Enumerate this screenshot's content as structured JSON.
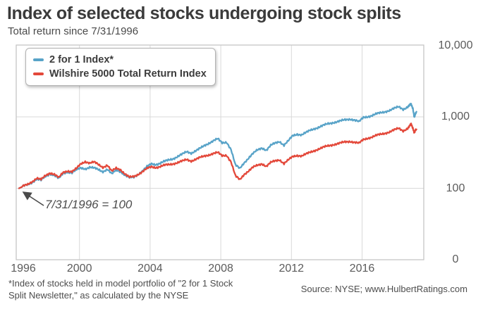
{
  "header": {
    "title": "Index of selected stocks undergoing stock splits",
    "subtitle": "Total return since 7/31/1996"
  },
  "legend": [
    {
      "label": "2 for 1 Index*",
      "color": "#58a3c8"
    },
    {
      "label": "Wilshire 5000 Total Return Index",
      "color": "#e3483a"
    }
  ],
  "annotation": {
    "text": "7/31/1996 = 100"
  },
  "footnote": {
    "line1": "*Index of stocks held in model portfolio of \"2 for 1 Stock",
    "line2": "Split Newsletter,\" as calculated by the NYSE"
  },
  "source": "Source: NYSE; www.HulbertRatings.com",
  "chart_data": {
    "type": "line",
    "title": "Index of selected stocks undergoing stock splits",
    "subtitle": "Total return since 7/31/1996",
    "y_scale": "log",
    "grid": true,
    "legend_position": "top-left",
    "base_note": "7/31/1996 = 100",
    "x_ticks": [
      1996,
      2000,
      2004,
      2008,
      2012,
      2016
    ],
    "y_ticks": [
      {
        "label": "10,000",
        "value": 10000
      },
      {
        "label": "1,000",
        "value": 1000
      },
      {
        "label": "100",
        "value": 100
      },
      {
        "label": "0",
        "value": 0
      }
    ],
    "x": [
      1996.58,
      1996.83,
      1997.08,
      1997.33,
      1997.58,
      1997.83,
      1998.08,
      1998.33,
      1998.58,
      1998.83,
      1999.08,
      1999.33,
      1999.58,
      1999.83,
      2000.08,
      2000.33,
      2000.58,
      2000.83,
      2001.08,
      2001.33,
      2001.58,
      2001.83,
      2002.08,
      2002.33,
      2002.58,
      2002.83,
      2003.08,
      2003.33,
      2003.58,
      2003.83,
      2004.08,
      2004.33,
      2004.58,
      2004.83,
      2005.08,
      2005.33,
      2005.58,
      2005.83,
      2006.08,
      2006.33,
      2006.58,
      2006.83,
      2007.08,
      2007.33,
      2007.58,
      2007.83,
      2008.08,
      2008.33,
      2008.58,
      2008.83,
      2009.08,
      2009.33,
      2009.58,
      2009.83,
      2010.08,
      2010.33,
      2010.58,
      2010.83,
      2011.08,
      2011.33,
      2011.58,
      2011.83,
      2012.08,
      2012.33,
      2012.58,
      2012.83,
      2013.08,
      2013.33,
      2013.58,
      2013.83,
      2014.08,
      2014.33,
      2014.58,
      2014.83,
      2015.08,
      2015.33,
      2015.58,
      2015.83,
      2016.08,
      2016.33,
      2016.58,
      2016.83,
      2017.08,
      2017.33,
      2017.58,
      2017.83,
      2018.08,
      2018.33,
      2018.58,
      2018.7,
      2018.78,
      2018.88,
      2018.96,
      2019.02,
      2019.08
    ],
    "series": [
      {
        "name": "2 for 1 Index*",
        "color": "#58a3c8",
        "values": [
          100,
          107,
          113,
          122,
          134,
          129,
          147,
          160,
          152,
          136,
          162,
          170,
          165,
          180,
          193,
          188,
          197,
          191,
          183,
          172,
          184,
          158,
          180,
          173,
          152,
          140,
          143,
          158,
          176,
          200,
          220,
          216,
          225,
          238,
          250,
          262,
          280,
          300,
          325,
          312,
          335,
          360,
          395,
          430,
          465,
          490,
          430,
          445,
          350,
          210,
          190,
          230,
          265,
          305,
          345,
          370,
          340,
          395,
          430,
          455,
          400,
          460,
          545,
          575,
          560,
          600,
          650,
          690,
          720,
          760,
          800,
          830,
          855,
          880,
          910,
          935,
          905,
          850,
          980,
          1010,
          1050,
          1100,
          1140,
          1190,
          1240,
          1310,
          1380,
          1280,
          1380,
          1450,
          1490,
          1320,
          990,
          1080,
          1180
        ]
      },
      {
        "name": "Wilshire 5000 Total Return Index",
        "color": "#e3483a",
        "values": [
          100,
          107,
          114,
          125,
          138,
          132,
          151,
          165,
          157,
          140,
          167,
          176,
          171,
          188,
          220,
          238,
          225,
          232,
          215,
          198,
          210,
          172,
          192,
          183,
          158,
          142,
          146,
          158,
          172,
          188,
          200,
          196,
          202,
          210,
          215,
          222,
          230,
          240,
          252,
          242,
          255,
          268,
          282,
          295,
          308,
          315,
          285,
          292,
          235,
          148,
          132,
          158,
          175,
          196,
          210,
          222,
          203,
          228,
          242,
          252,
          222,
          248,
          278,
          290,
          284,
          300,
          320,
          340,
          358,
          375,
          392,
          408,
          420,
          432,
          445,
          455,
          442,
          425,
          480,
          505,
          525,
          550,
          570,
          595,
          620,
          655,
          690,
          640,
          690,
          740,
          790,
          700,
          600,
          640,
          668
        ]
      }
    ]
  }
}
